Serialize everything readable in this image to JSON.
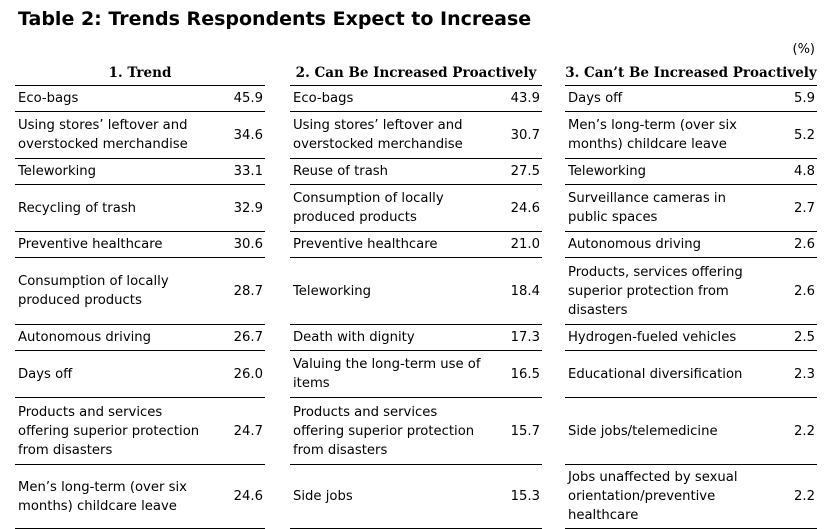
{
  "title": "Table 2: Trends Respondents Expect to Increase",
  "unit": "(%)",
  "columns": [
    {
      "heading": "1. Trend",
      "rows": [
        {
          "label": "Eco-bags",
          "value": "45.9"
        },
        {
          "label": "Using stores’ leftover and overstocked merchandise",
          "value": "34.6"
        },
        {
          "label": "Teleworking",
          "value": "33.1"
        },
        {
          "label": "Recycling of trash",
          "value": "32.9"
        },
        {
          "label": "Preventive healthcare",
          "value": "30.6"
        },
        {
          "label": "Consumption of locally produced products",
          "value": "28.7"
        },
        {
          "label": "Autonomous driving",
          "value": "26.7"
        },
        {
          "label": "Days off",
          "value": "26.0"
        },
        {
          "label": "Products and services offering superior protection from disasters",
          "value": "24.7"
        },
        {
          "label": "Men’s long-term (over six months) childcare leave",
          "value": "24.6"
        }
      ]
    },
    {
      "heading": "2. Can Be Increased Proactively",
      "rows": [
        {
          "label": "Eco-bags",
          "value": "43.9"
        },
        {
          "label": "Using stores’ leftover and overstocked merchandise",
          "value": "30.7"
        },
        {
          "label": "Reuse of trash",
          "value": "27.5"
        },
        {
          "label": "Consumption of locally produced products",
          "value": "24.6"
        },
        {
          "label": "Preventive healthcare",
          "value": "21.0"
        },
        {
          "label": "Teleworking",
          "value": "18.4"
        },
        {
          "label": "Death with dignity",
          "value": "17.3"
        },
        {
          "label": "Valuing the long-term use of items",
          "value": "16.5"
        },
        {
          "label": "Products and services offering superior protection from disasters",
          "value": "15.7"
        },
        {
          "label": "Side jobs",
          "value": "15.3"
        }
      ]
    },
    {
      "heading": "3. Can’t Be Increased Proactively",
      "rows": [
        {
          "label": "Days off",
          "value": "5.9"
        },
        {
          "label": "Men’s long-term (over six months) childcare leave",
          "value": "5.2"
        },
        {
          "label": "Teleworking",
          "value": "4.8"
        },
        {
          "label": "Surveillance cameras in public spaces",
          "value": "2.7"
        },
        {
          "label": "Autonomous driving",
          "value": "2.6"
        },
        {
          "label": "Products, services offering superior protection from disasters",
          "value": "2.6"
        },
        {
          "label": "Hydrogen-fueled vehicles",
          "value": "2.5"
        },
        {
          "label": "Educational diversification",
          "value": "2.3"
        },
        {
          "label": "Side jobs/telemedicine",
          "value": "2.2"
        },
        {
          "label": "Jobs unaffected by sexual orientation/preventive healthcare",
          "value": "2.2"
        }
      ]
    }
  ]
}
